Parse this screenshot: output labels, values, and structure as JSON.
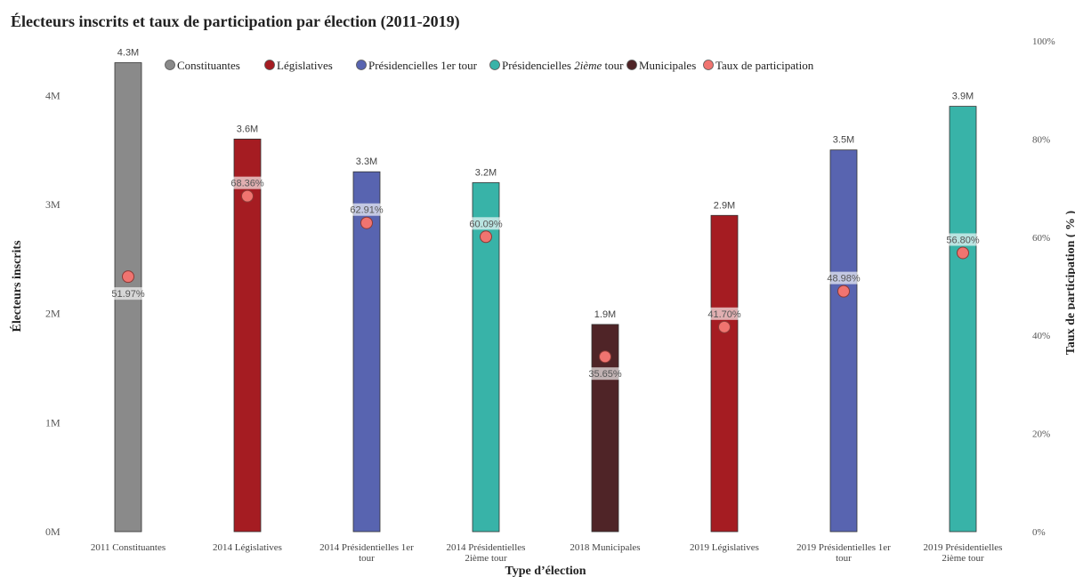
{
  "chart_data": {
    "type": "bar",
    "title": "Électeurs inscrits et taux de participation par élection (2011-2019)",
    "xlabel": "Type d’élection",
    "ylabel": "Électeurs inscrits",
    "y2label": "Taux de participation ( % )",
    "ylim": [
      0,
      4500000
    ],
    "y2lim": [
      0,
      100
    ],
    "y_ticks": [
      "0M",
      "1M",
      "2M",
      "3M",
      "4M"
    ],
    "y2_ticks": [
      "0%",
      "20%",
      "40%",
      "60%",
      "80%",
      "100%"
    ],
    "grid": false,
    "legend_position": "top",
    "legend": [
      {
        "label": "Constituantes",
        "color": "#8a8a8a",
        "italic": ""
      },
      {
        "label": "Législatives",
        "color": "#a51c22",
        "italic": ""
      },
      {
        "label": "Présidencielles 1er tour",
        "color": "#5864b0",
        "italic": ""
      },
      {
        "label": "Présidencielles ",
        "color": "#38b3a8",
        "italic": "2ième",
        "suffix": " tour"
      },
      {
        "label": "Municipales",
        "color": "#4f2427",
        "italic": ""
      },
      {
        "label": "Taux de participation",
        "color": "#f07470",
        "italic": ""
      }
    ],
    "categories": [
      "2011 Constituantes",
      "2014 Législatives",
      "2014 Présidentielles 1er tour",
      "2014 Présidentielles 2ième tour",
      "2018 Municipales",
      "2019 Législatives",
      "2019 Présidentielles 1er tour",
      "2019 Présidentielles 2ième tour"
    ],
    "category_lines": [
      [
        "2011 Constituantes"
      ],
      [
        "2014 Législatives"
      ],
      [
        "2014 Présidentielles 1er",
        "tour"
      ],
      [
        "2014 Présidentielles",
        "2ième tour"
      ],
      [
        "2018 Municipales"
      ],
      [
        "2019 Législatives"
      ],
      [
        "2019 Présidentielles 1er",
        "tour"
      ],
      [
        "2019 Présidentielles",
        "2ième tour"
      ]
    ],
    "series": [
      {
        "name": "Électeurs inscrits",
        "values": [
          4300000,
          3600000,
          3300000,
          3200000,
          1900000,
          2900000,
          3500000,
          3900000
        ],
        "labels": [
          "4.3M",
          "3.6M",
          "3.3M",
          "3.2M",
          "1.9M",
          "2.9M",
          "3.5M",
          "3.9M"
        ],
        "colors": [
          "#8a8a8a",
          "#a51c22",
          "#5864b0",
          "#38b3a8",
          "#4f2427",
          "#a51c22",
          "#5864b0",
          "#38b3a8"
        ]
      },
      {
        "name": "Taux de participation",
        "values": [
          51.97,
          68.36,
          62.91,
          60.09,
          35.65,
          41.7,
          48.98,
          56.8
        ],
        "labels": [
          "51.97%",
          "68.36%",
          "62.91%",
          "60.09%",
          "35.65%",
          "41.70%",
          "48.98%",
          "56.80%"
        ],
        "label_position": [
          "below",
          "above",
          "above",
          "above",
          "below",
          "above",
          "above",
          "above"
        ]
      }
    ]
  }
}
